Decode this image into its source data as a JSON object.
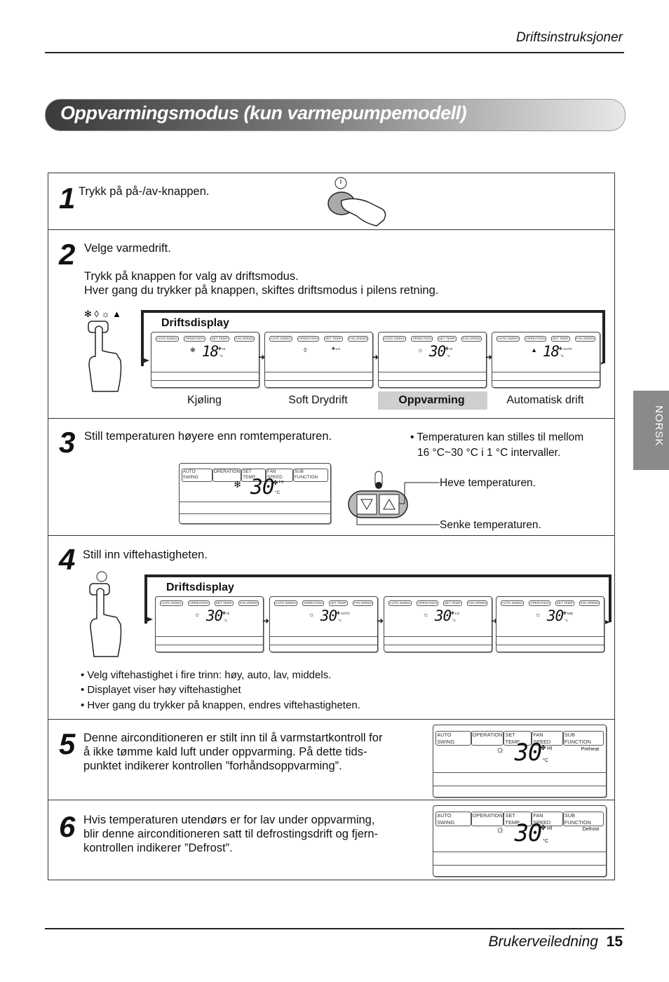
{
  "header": {
    "section": "Driftsinstruksjoner"
  },
  "title": "Oppvarmingsmodus (kun varmepumpemodell)",
  "side_tab": "NORSK",
  "lcd_labels": [
    "AUTO SWING",
    "OPERATION",
    "SET TEMP",
    "FAN SPEED",
    "SUB FUNCTION"
  ],
  "unit": "°C",
  "steps": [
    {
      "number": "1",
      "text": "Trykk på på-/av-knappen."
    },
    {
      "number": "2",
      "lines": [
        "Velge varmedrift.",
        "Trykk på knappen for valg av driftsmodus.",
        "Hver gang du trykker på knappen, skiftes driftsmodus i pilens retning."
      ],
      "display_label": "Driftsdisplay",
      "displays": [
        {
          "icon": "cool",
          "temp": "18",
          "fan": "HI",
          "mode": "Kjøling"
        },
        {
          "icon": "dry",
          "fan": "LO",
          "mode": "Soft Drydrift"
        },
        {
          "icon": "heat",
          "temp": "30",
          "fan": "HI",
          "mode": "Oppvarming",
          "highlight": true
        },
        {
          "icon": "auto",
          "temp": "18",
          "fan": "AUTO",
          "mode": "Automatisk drift"
        }
      ]
    },
    {
      "number": "3",
      "text": "Still temperaturen høyere enn romtemperaturen.",
      "note_lines": [
        "• Temperaturen kan stilles til mellom",
        "16 °C~30 °C i 1 °C intervaller."
      ],
      "raise": "Heve temperaturen.",
      "lower": "Senke temperaturen.",
      "displays": [
        {
          "icon": "cool",
          "temp": "30",
          "fan": "HI",
          "sub_function": true
        }
      ]
    },
    {
      "number": "4",
      "text": "Still inn viftehastigheten.",
      "display_label": "Driftsdisplay",
      "displays": [
        {
          "icon": "heat",
          "temp": "30",
          "fan": "HI"
        },
        {
          "icon": "heat",
          "temp": "30",
          "fan": "AUTO"
        },
        {
          "icon": "heat",
          "temp": "30",
          "fan": "LO"
        },
        {
          "icon": "heat",
          "temp": "30",
          "fan": "MID"
        }
      ],
      "bullets": [
        "• Velg viftehastighet i fire trinn: høy, auto, lav, middels.",
        "• Displayet viser høy viftehastighet",
        "• Hver gang du trykker på knappen, endres viftehastigheten."
      ]
    },
    {
      "number": "5",
      "lines": [
        "Denne airconditioneren er stilt inn til å varmstartkontroll for",
        "å ikke tømme kald luft under oppvarming. På dette tids-",
        "punktet indikerer kontrollen ”forhåndsoppvarming”."
      ],
      "displays": [
        {
          "icon": "heat",
          "temp": "30",
          "fan": "HI",
          "sub_function": true,
          "note": "Preheat"
        }
      ]
    },
    {
      "number": "6",
      "lines": [
        "Hvis temperaturen utendørs er for lav under oppvarming,",
        "blir denne airconditioneren satt til defrostingsdrift og fjern-",
        "kontrollen indikerer ”Defrost”."
      ],
      "displays": [
        {
          "icon": "heat",
          "temp": "30",
          "fan": "HI",
          "sub_function": true,
          "note": "Defrost"
        }
      ]
    }
  ],
  "footer": {
    "guide": "Brukerveiledning",
    "page": "15"
  }
}
